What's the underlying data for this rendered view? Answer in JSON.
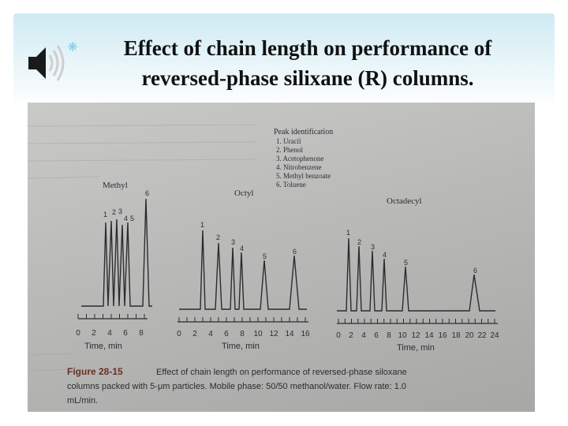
{
  "slide": {
    "title_line1": "Effect of chain length on performance of",
    "title_line2": "reversed-phase silixane (R) columns."
  },
  "figure": {
    "peak_identification_heading": "Peak identification",
    "peaks": [
      "1. Uracil",
      "2. Phenol",
      "3. Acetophenone",
      "4. Nitrobenzene",
      "5. Methyl benzoate",
      "6. Toluene"
    ],
    "panels": [
      {
        "label": "Methyl",
        "ticks": [
          "0",
          "2",
          "4",
          "6",
          "8"
        ],
        "axis_label": "Time, min"
      },
      {
        "label": "Octyl",
        "ticks": [
          "0",
          "2",
          "4",
          "6",
          "8",
          "10",
          "12",
          "14",
          "16"
        ],
        "axis_label": "Time, min"
      },
      {
        "label": "Octadecyl",
        "ticks": [
          "0",
          "2",
          "4",
          "6",
          "8",
          "10",
          "12",
          "14",
          "16",
          "18",
          "20",
          "22",
          "24"
        ],
        "axis_label": "Time, min"
      }
    ],
    "methyl_peak_labels": [
      "1",
      "2",
      "3",
      "4",
      "5",
      "6"
    ],
    "octyl_peak_labels": [
      "1",
      "2",
      "3",
      "4",
      "5",
      "6"
    ],
    "octadecyl_peak_labels": [
      "1",
      "2",
      "3",
      "4",
      "5",
      "6"
    ],
    "caption_label": "Figure 28-15",
    "caption_line1": "Effect of chain length on performance of reversed-phase siloxane",
    "caption_line2": "columns packed with 5-μm particles. Mobile phase: 50/50 methanol/water. Flow rate: 1.0",
    "caption_line3": "mL/min."
  },
  "colors": {
    "title_text": "#111111",
    "frame_gradient_top": "#cfeaf3",
    "photo_paper": "#bcbdbb",
    "ink": "#2b2c2e"
  },
  "icons": [
    "speaker-icon",
    "bullet-icon"
  ]
}
